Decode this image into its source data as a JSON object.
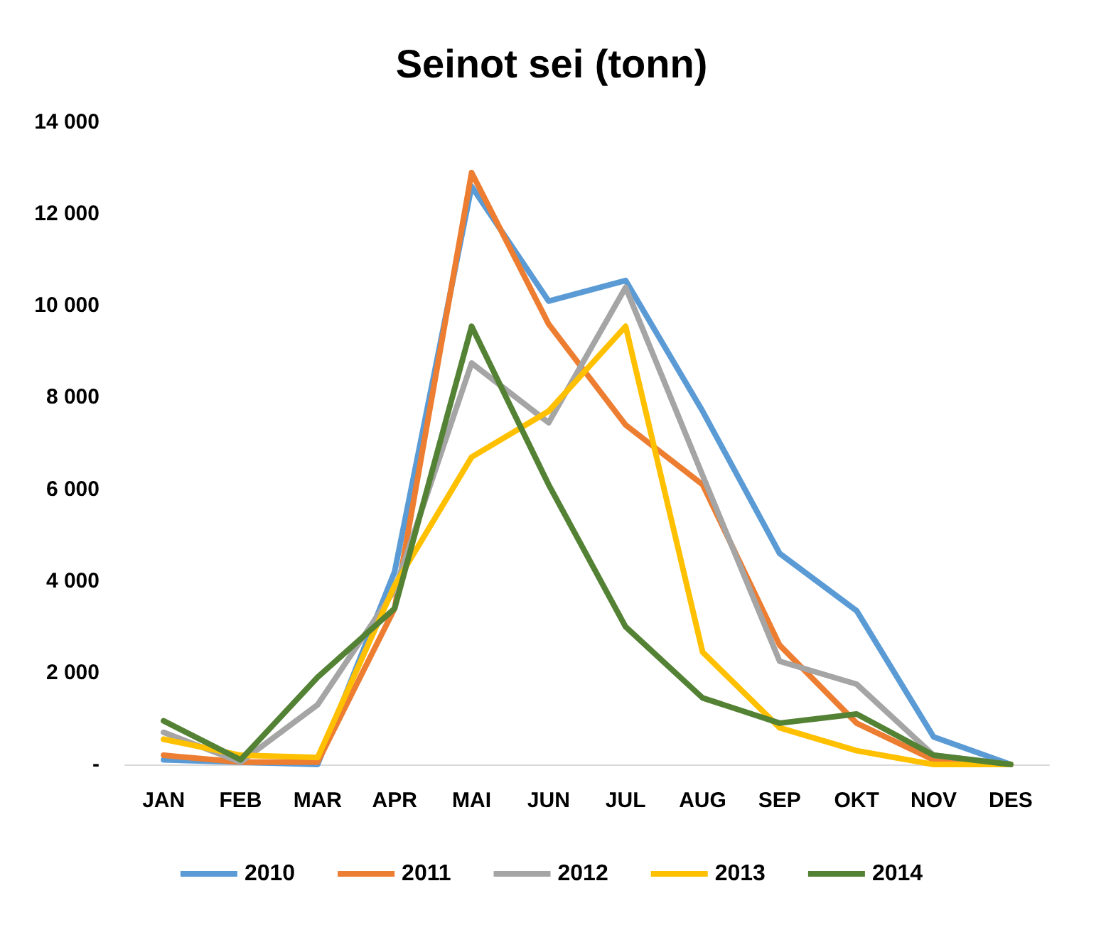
{
  "chart_data": {
    "type": "line",
    "title": "Seinot sei (tonn)",
    "categories": [
      "JAN",
      "FEB",
      "MAR",
      "APR",
      "MAI",
      "JUN",
      "JUL",
      "AUG",
      "SEP",
      "OKT",
      "NOV",
      "DES"
    ],
    "series": [
      {
        "name": "2010",
        "color": "#5b9bd5",
        "values": [
          100,
          50,
          0,
          4200,
          12600,
          10100,
          10550,
          7700,
          4600,
          3350,
          600,
          0
        ]
      },
      {
        "name": "2011",
        "color": "#ed7d31",
        "values": [
          200,
          50,
          50,
          3400,
          12900,
          9600,
          7400,
          6100,
          2600,
          900,
          100,
          0
        ]
      },
      {
        "name": "2012",
        "color": "#a5a5a5",
        "values": [
          700,
          50,
          1300,
          3800,
          8750,
          7450,
          10400,
          6300,
          2250,
          1750,
          200,
          0
        ]
      },
      {
        "name": "2013",
        "color": "#ffc000",
        "values": [
          550,
          200,
          150,
          3900,
          6700,
          7700,
          9550,
          2450,
          800,
          300,
          0,
          0
        ]
      },
      {
        "name": "2014",
        "color": "#548235",
        "values": [
          950,
          100,
          1900,
          3400,
          9550,
          6100,
          3000,
          1450,
          900,
          1100,
          200,
          0
        ]
      }
    ],
    "ylim": [
      0,
      14000
    ],
    "yticks": [
      {
        "value": 0,
        "label": "-"
      },
      {
        "value": 2000,
        "label": "2 000"
      },
      {
        "value": 4000,
        "label": "4 000"
      },
      {
        "value": 6000,
        "label": "6 000"
      },
      {
        "value": 8000,
        "label": "8 000"
      },
      {
        "value": 10000,
        "label": "10 000"
      },
      {
        "value": 12000,
        "label": "12 000"
      },
      {
        "value": 14000,
        "label": "14 000"
      }
    ],
    "grid": false,
    "legend": "bottom",
    "marker": "none",
    "line_style": "solid"
  }
}
